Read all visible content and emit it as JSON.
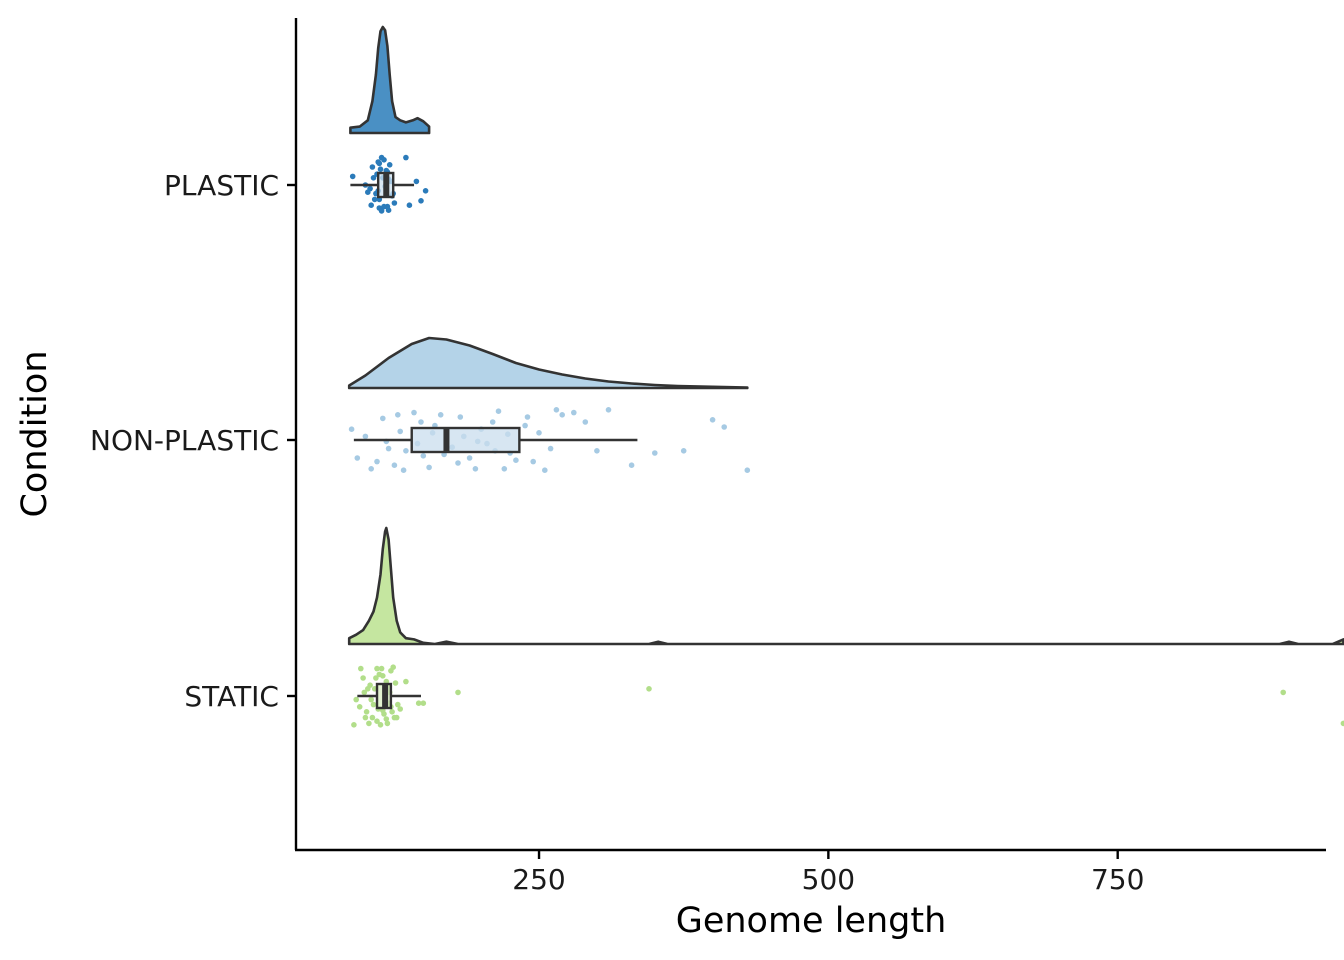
{
  "chart_data": {
    "type": "raincloud",
    "xlabel": "Genome length",
    "ylabel": "Condition",
    "xlim": [
      40,
      930
    ],
    "x_ticks": [
      250,
      500,
      750
    ],
    "categories": [
      "PLASTIC",
      "NON-PLASTIC",
      "STATIC"
    ],
    "grid": false,
    "legend": "none",
    "series": [
      {
        "name": "PLASTIC",
        "color": "#4a90c4",
        "point_color": "#2b7bba",
        "box_fill": "#cfe0ee",
        "box": {
          "min": 87,
          "q1": 111,
          "median": 118,
          "q3": 124,
          "max": 142
        },
        "density": {
          "range": [
            87,
            155
          ],
          "profile": [
            [
              87,
              0.05
            ],
            [
              95,
              0.06
            ],
            [
              102,
              0.12
            ],
            [
              106,
              0.3
            ],
            [
              109,
              0.55
            ],
            [
              111,
              0.8
            ],
            [
              113,
              0.96
            ],
            [
              115,
              1.0
            ],
            [
              117,
              0.97
            ],
            [
              119,
              0.82
            ],
            [
              121,
              0.55
            ],
            [
              123,
              0.3
            ],
            [
              126,
              0.15
            ],
            [
              130,
              0.12
            ],
            [
              135,
              0.1
            ],
            [
              141,
              0.12
            ],
            [
              145,
              0.14
            ],
            [
              150,
              0.11
            ],
            [
              155,
              0.06
            ]
          ]
        },
        "points": [
          [
            104,
            0.05
          ],
          [
            109,
            0.12
          ],
          [
            112,
            0.2
          ],
          [
            116,
            0.3
          ],
          [
            120,
            0.35
          ],
          [
            112,
            -0.3
          ],
          [
            118,
            -0.2
          ],
          [
            107,
            -0.1
          ],
          [
            100,
            0.0
          ],
          [
            124,
            0.12
          ],
          [
            114,
            -0.38
          ],
          [
            111,
            0.08
          ],
          [
            119,
            0.3
          ],
          [
            105,
            0.28
          ],
          [
            122,
            -0.05
          ],
          [
            113,
            -0.22
          ],
          [
            117,
            0.02
          ],
          [
            110,
            -0.15
          ],
          [
            121,
            -0.28
          ],
          [
            108,
            0.2
          ],
          [
            115,
            -0.1
          ],
          [
            125,
            0.25
          ],
          [
            118,
            0.05
          ],
          [
            112,
            0.32
          ],
          [
            116,
            -0.35
          ],
          [
            102,
            0.1
          ],
          [
            148,
            0.22
          ],
          [
            152,
            0.08
          ],
          [
            138,
            0.28
          ],
          [
            144,
            -0.05
          ],
          [
            89,
            -0.12
          ],
          [
            135,
            -0.38
          ],
          [
            106,
            -0.25
          ],
          [
            119,
            -0.18
          ],
          [
            123,
            0.15
          ],
          [
            111,
            -0.32
          ],
          [
            114,
            0.36
          ],
          [
            120,
            -0.08
          ]
        ]
      },
      {
        "name": "NON-PLASTIC",
        "color": "#b4d3e8",
        "point_color": "#a6cae3",
        "box_fill": "#c9ddee",
        "box": {
          "min": 90,
          "q1": 140,
          "median": 170,
          "q3": 233,
          "max": 335
        },
        "density": {
          "range": [
            86,
            430
          ],
          "profile": [
            [
              86,
              0.05
            ],
            [
              100,
              0.25
            ],
            [
              120,
              0.6
            ],
            [
              140,
              0.88
            ],
            [
              155,
              1.0
            ],
            [
              170,
              0.97
            ],
            [
              190,
              0.85
            ],
            [
              210,
              0.68
            ],
            [
              230,
              0.5
            ],
            [
              250,
              0.37
            ],
            [
              270,
              0.27
            ],
            [
              290,
              0.19
            ],
            [
              310,
              0.13
            ],
            [
              330,
              0.09
            ],
            [
              350,
              0.06
            ],
            [
              370,
              0.04
            ],
            [
              390,
              0.03
            ],
            [
              410,
              0.02
            ],
            [
              430,
              0.01
            ]
          ]
        },
        "points": [
          [
            93,
            0.25
          ],
          [
            110,
            0.3
          ],
          [
            130,
            -0.12
          ],
          [
            150,
            0.22
          ],
          [
            170,
            0.08
          ],
          [
            190,
            0.25
          ],
          [
            210,
            -0.25
          ],
          [
            230,
            0.28
          ],
          [
            250,
            -0.1
          ],
          [
            270,
            -0.35
          ],
          [
            330,
            0.35
          ],
          [
            350,
            0.18
          ],
          [
            400,
            -0.28
          ],
          [
            430,
            0.42
          ],
          [
            100,
            -0.05
          ],
          [
            120,
            0.12
          ],
          [
            145,
            0.05
          ],
          [
            160,
            -0.2
          ],
          [
            180,
            0.32
          ],
          [
            200,
            -0.15
          ],
          [
            220,
            0.4
          ],
          [
            240,
            -0.32
          ],
          [
            260,
            0.12
          ],
          [
            290,
            -0.25
          ],
          [
            310,
            -0.42
          ],
          [
            88,
            -0.15
          ],
          [
            105,
            0.4
          ],
          [
            115,
            -0.3
          ],
          [
            125,
            0.35
          ],
          [
            135,
            0.15
          ],
          [
            155,
            0.38
          ],
          [
            165,
            -0.35
          ],
          [
            175,
            0.1
          ],
          [
            185,
            -0.05
          ],
          [
            195,
            0.4
          ],
          [
            205,
            0.05
          ],
          [
            215,
            -0.4
          ],
          [
            225,
            0.18
          ],
          [
            245,
            0.3
          ],
          [
            265,
            -0.42
          ],
          [
            300,
            0.15
          ],
          [
            375,
            0.15
          ],
          [
            410,
            -0.18
          ],
          [
            133,
            0.42
          ],
          [
            158,
            -0.1
          ],
          [
            182,
            -0.32
          ],
          [
            212,
            0.15
          ],
          [
            238,
            -0.2
          ],
          [
            118,
            0.02
          ],
          [
            142,
            -0.38
          ],
          [
            197,
            0.02
          ],
          [
            223,
            -0.08
          ],
          [
            255,
            0.42
          ],
          [
            280,
            -0.38
          ],
          [
            168,
            0.2
          ],
          [
            148,
            -0.25
          ],
          [
            128,
            -0.35
          ]
        ]
      },
      {
        "name": "STATIC",
        "color": "#c5e6a0",
        "point_color": "#b2de8a",
        "box_fill": "#d9efc2",
        "box": {
          "min": 93,
          "q1": 110,
          "median": 117,
          "q3": 122,
          "max": 148
        },
        "density": {
          "range": [
            86,
            945
          ],
          "profile": [
            [
              86,
              0.05
            ],
            [
              92,
              0.08
            ],
            [
              98,
              0.12
            ],
            [
              103,
              0.2
            ],
            [
              107,
              0.28
            ],
            [
              110,
              0.4
            ],
            [
              113,
              0.6
            ],
            [
              115,
              0.82
            ],
            [
              117,
              0.97
            ],
            [
              118,
              1.0
            ],
            [
              120,
              0.9
            ],
            [
              122,
              0.65
            ],
            [
              124,
              0.4
            ],
            [
              127,
              0.2
            ],
            [
              130,
              0.1
            ],
            [
              135,
              0.05
            ],
            [
              142,
              0.04
            ],
            [
              150,
              0.01
            ],
            [
              160,
              0.0
            ],
            [
              170,
              0.02
            ],
            [
              180,
              0.0
            ],
            [
              345,
              0.0
            ],
            [
              353,
              0.02
            ],
            [
              361,
              0.0
            ],
            [
              890,
              0.0
            ],
            [
              898,
              0.02
            ],
            [
              906,
              0.0
            ],
            [
              936,
              0.0
            ],
            [
              945,
              0.04
            ]
          ]
        },
        "points": [
          [
            90,
            0.4
          ],
          [
            95,
            0.15
          ],
          [
            100,
            0.3
          ],
          [
            105,
            0.05
          ],
          [
            110,
            0.35
          ],
          [
            115,
            0.2
          ],
          [
            120,
            0.1
          ],
          [
            125,
            0.3
          ],
          [
            108,
            -0.1
          ],
          [
            112,
            -0.3
          ],
          [
            118,
            -0.2
          ],
          [
            122,
            -0.35
          ],
          [
            98,
            -0.25
          ],
          [
            102,
            -0.1
          ],
          [
            116,
            0.25
          ],
          [
            119,
            0.38
          ],
          [
            121,
            -0.05
          ],
          [
            114,
            -0.38
          ],
          [
            111,
            0.18
          ],
          [
            109,
            -0.25
          ],
          [
            106,
            0.3
          ],
          [
            104,
            -0.15
          ],
          [
            117,
            0.05
          ],
          [
            113,
            0.4
          ],
          [
            123,
            0.22
          ],
          [
            126,
            -0.18
          ],
          [
            128,
            0.12
          ],
          [
            96,
            -0.38
          ],
          [
            92,
            0.05
          ],
          [
            124,
            -0.4
          ],
          [
            127,
            0.3
          ],
          [
            103,
            0.38
          ],
          [
            115,
            -0.28
          ],
          [
            120,
            -0.12
          ],
          [
            107,
            0.12
          ],
          [
            110,
            -0.38
          ],
          [
            118,
            0.32
          ],
          [
            122,
            0.15
          ],
          [
            101,
            0.22
          ],
          [
            99,
            -0.05
          ],
          [
            146,
            0.1
          ],
          [
            150,
            0.1
          ],
          [
            180,
            -0.05
          ],
          [
            345,
            -0.1
          ],
          [
            893,
            -0.05
          ],
          [
            945,
            0.38
          ],
          [
            135,
            -0.2
          ],
          [
            130,
            0.18
          ]
        ]
      }
    ]
  }
}
